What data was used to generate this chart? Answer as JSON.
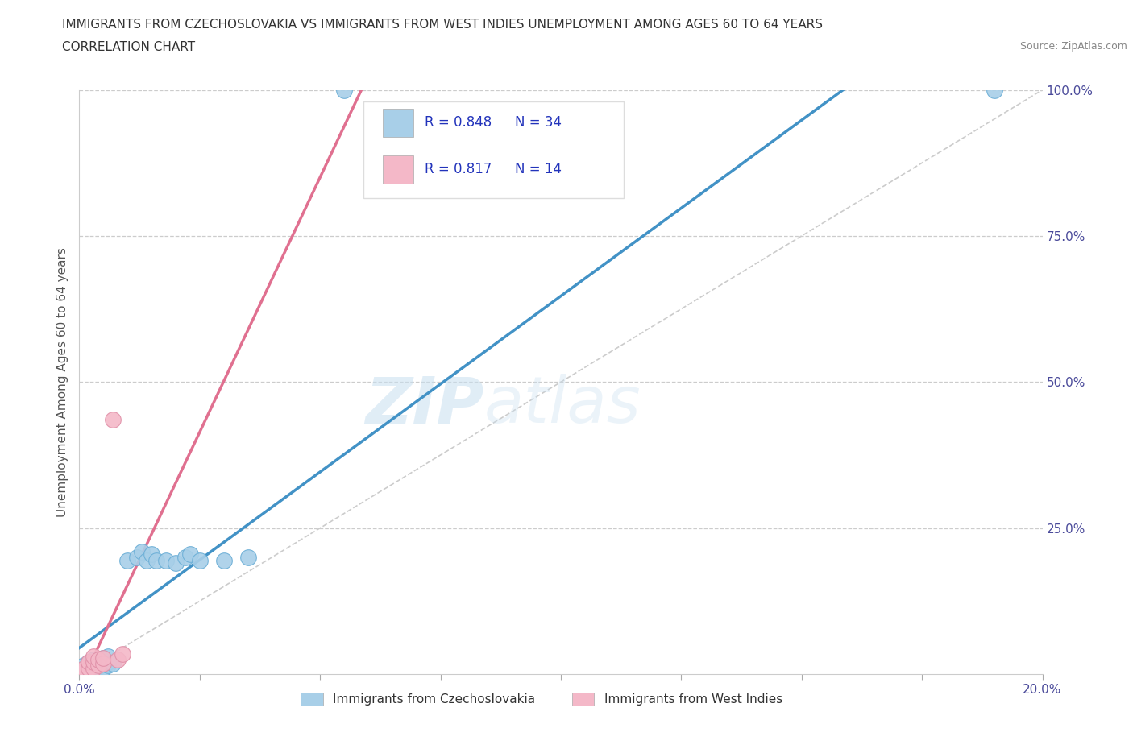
{
  "title_line1": "IMMIGRANTS FROM CZECHOSLOVAKIA VS IMMIGRANTS FROM WEST INDIES UNEMPLOYMENT AMONG AGES 60 TO 64 YEARS",
  "title_line2": "CORRELATION CHART",
  "source_text": "Source: ZipAtlas.com",
  "ylabel": "Unemployment Among Ages 60 to 64 years",
  "xlim": [
    0.0,
    0.2
  ],
  "ylim": [
    0.0,
    1.0
  ],
  "color_czech": "#a8cfe8",
  "color_westindies": "#f4b8c8",
  "color_czech_line": "#4292c6",
  "color_westindies_line": "#e07090",
  "color_diag_line": "#cccccc",
  "watermark_zip": "ZIP",
  "watermark_atlas": "atlas",
  "czech_x": [
    0.001,
    0.001,
    0.002,
    0.002,
    0.002,
    0.003,
    0.003,
    0.003,
    0.004,
    0.004,
    0.005,
    0.005,
    0.005,
    0.006,
    0.006,
    0.006,
    0.007,
    0.007,
    0.008,
    0.008,
    0.009,
    0.009,
    0.01,
    0.011,
    0.012,
    0.013,
    0.015,
    0.018,
    0.02,
    0.022,
    0.025,
    0.03,
    0.055,
    0.19
  ],
  "czech_y": [
    0.005,
    0.01,
    0.008,
    0.015,
    0.02,
    0.01,
    0.02,
    0.03,
    0.015,
    0.025,
    0.01,
    0.02,
    0.03,
    0.015,
    0.025,
    0.035,
    0.02,
    0.03,
    0.025,
    0.035,
    0.195,
    0.215,
    0.21,
    0.205,
    0.195,
    0.2,
    0.185,
    0.19,
    0.195,
    0.2,
    0.19,
    0.205,
    1.0,
    1.0
  ],
  "wi_x": [
    0.001,
    0.002,
    0.002,
    0.003,
    0.003,
    0.004,
    0.004,
    0.005,
    0.005,
    0.006,
    0.007,
    0.008,
    0.009,
    0.01
  ],
  "wi_y": [
    0.005,
    0.01,
    0.02,
    0.015,
    0.025,
    0.02,
    0.03,
    0.025,
    0.035,
    0.03,
    0.04,
    0.435,
    0.04,
    0.05
  ]
}
